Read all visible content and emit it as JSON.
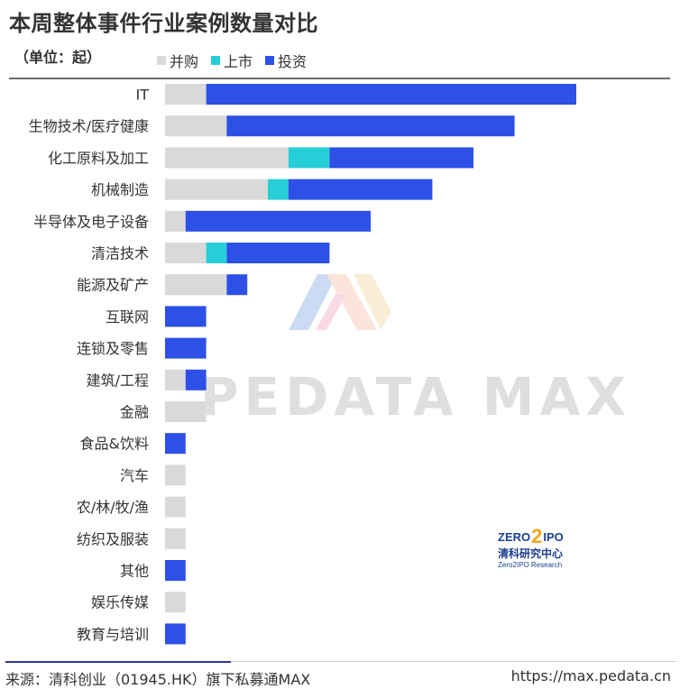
{
  "title": "本周整体事件行业案例数量对比",
  "unit_label": "（单位：起）",
  "footer": {
    "source": "来源：清科创业（01945.HK）旗下私募通MAX",
    "url": "https://max.pedata.cn"
  },
  "watermark": {
    "text": "PEDATA MAX"
  },
  "logo": {
    "top_left": "ZERO",
    "top_mid": "2",
    "top_right": "IPO",
    "cn": "清科研究中心",
    "en": "Zero2IPO Research"
  },
  "colors": {
    "并购": "#d9d9d9",
    "上市": "#26cfd8",
    "投资": "#2d50e6"
  },
  "chart_data": {
    "type": "bar",
    "orientation": "horizontal",
    "stacked": true,
    "title": "本周整体事件行业案例数量对比",
    "categories": [
      "IT",
      "生物技术/医疗健康",
      "化工原料及加工",
      "机械制造",
      "半导体及电子设备",
      "清洁技术",
      "能源及矿产",
      "互联网",
      "连锁及零售",
      "建筑/工程",
      "金融",
      "食品&饮料",
      "汽车",
      "农/林/牧/渔",
      "纺织及服装",
      "其他",
      "娱乐传媒",
      "教育与培训"
    ],
    "series": [
      {
        "name": "并购",
        "values": [
          2,
          3,
          6,
          5,
          1,
          2,
          3,
          0,
          0,
          1,
          2,
          0,
          1,
          1,
          1,
          0,
          1,
          0
        ]
      },
      {
        "name": "上市",
        "values": [
          0,
          0,
          2,
          1,
          0,
          1,
          0,
          0,
          0,
          0,
          0,
          0,
          0,
          0,
          0,
          0,
          0,
          0
        ]
      },
      {
        "name": "投资",
        "values": [
          18,
          14,
          7,
          7,
          9,
          5,
          1,
          2,
          2,
          1,
          0,
          1,
          0,
          0,
          0,
          1,
          0,
          1
        ]
      }
    ],
    "legend_position": "top",
    "grid": false
  }
}
